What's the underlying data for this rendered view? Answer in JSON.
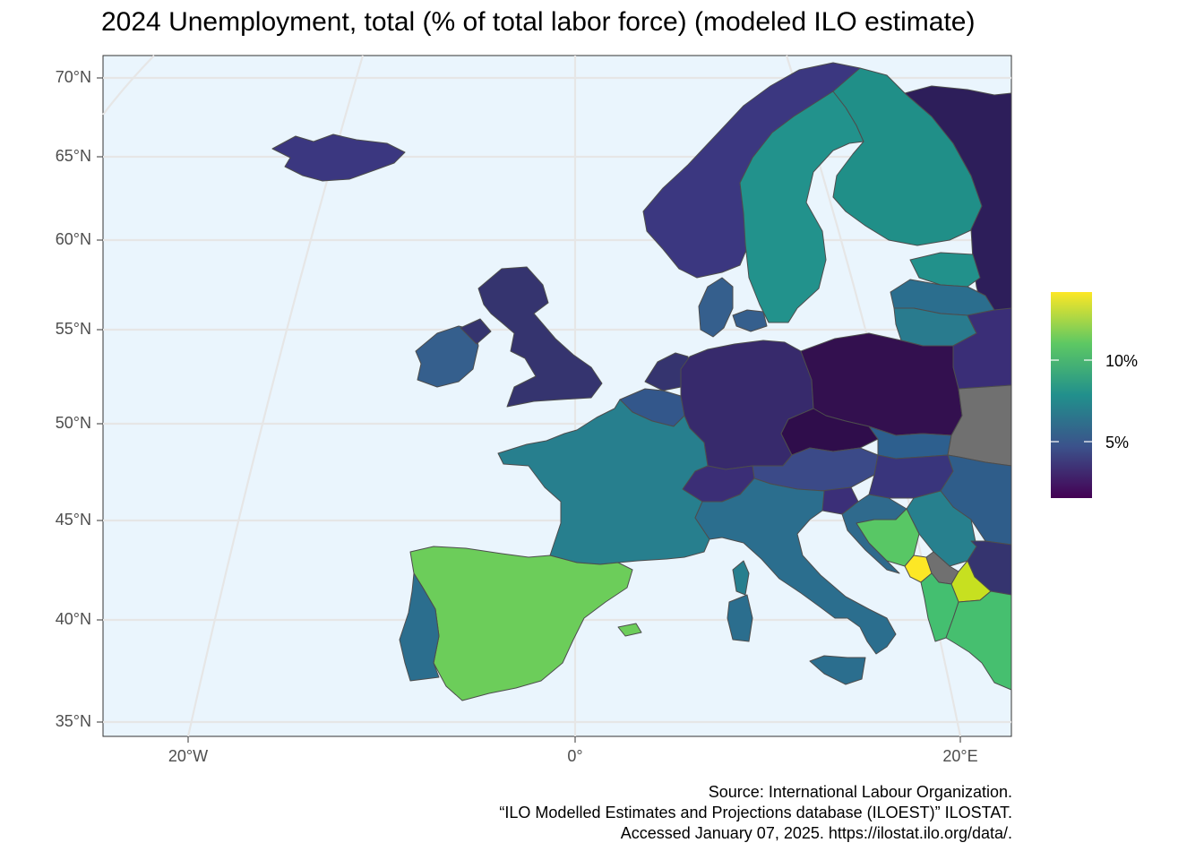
{
  "title": "2024 Unemployment, total (% of total labor force) (modeled ILO estimate)",
  "axes": {
    "y_ticks": [
      "70°N",
      "65°N",
      "60°N",
      "55°N",
      "50°N",
      "45°N",
      "40°N",
      "35°N"
    ],
    "x_ticks": [
      "20°W",
      "0°",
      "20°E"
    ]
  },
  "legend": {
    "labels": [
      "10%",
      "5%"
    ],
    "colors": [
      "#440154",
      "#3b528b",
      "#21908c",
      "#5dc863",
      "#fde725"
    ],
    "range": [
      2,
      15
    ]
  },
  "caption": {
    "line1": "Source: International Labour Organization.",
    "line2": "“ILO Modelled Estimates and Projections database (ILOEST)” ILOSTAT.",
    "line3": "Accessed January 07, 2025. https://ilostat.ilo.org/data/."
  },
  "colors": {
    "sea": "#eaf5fd",
    "no_data": "#707070",
    "border": "#4d4d4d",
    "grid": "#e6e6e6"
  }
}
